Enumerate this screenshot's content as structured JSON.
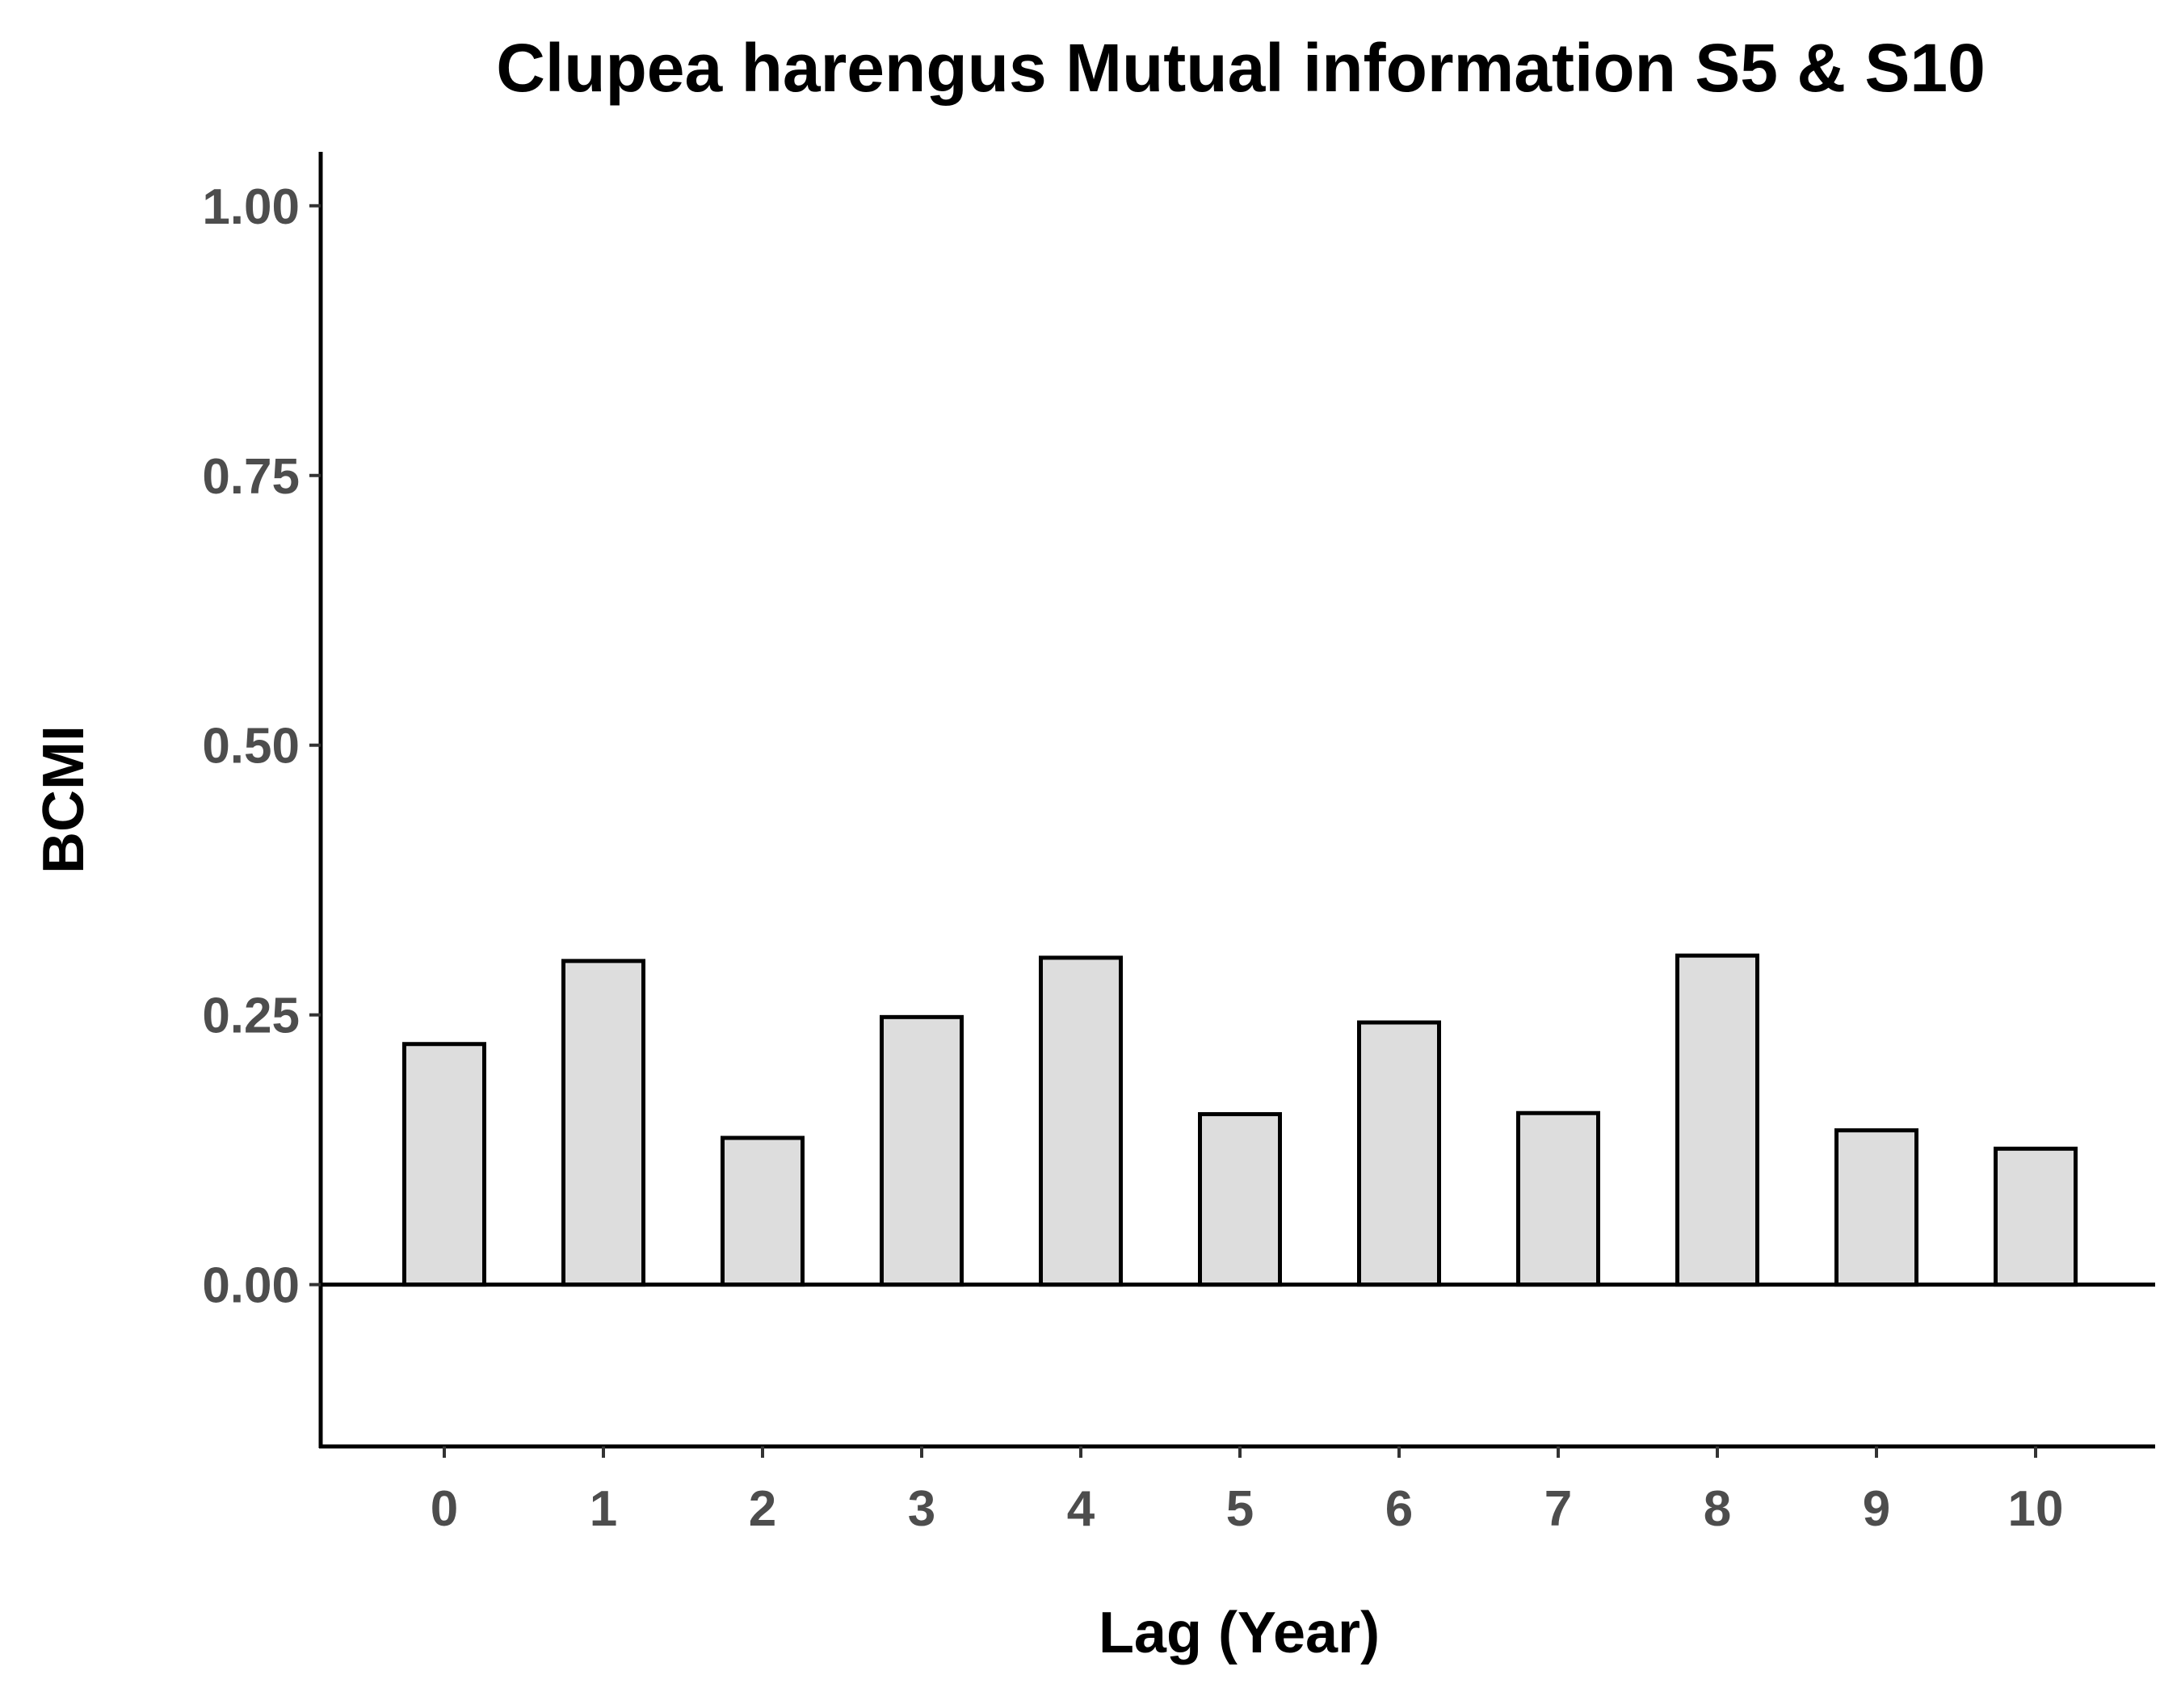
{
  "chart_data": {
    "type": "bar",
    "title": "Clupea harengus Mutual information S5 & S10",
    "xlabel": "Lag (Year)",
    "ylabel": "BCMI",
    "categories": [
      "0",
      "1",
      "2",
      "3",
      "4",
      "5",
      "6",
      "7",
      "8",
      "9",
      "10"
    ],
    "values": [
      0.223,
      0.3,
      0.136,
      0.248,
      0.303,
      0.158,
      0.243,
      0.159,
      0.305,
      0.143,
      0.126
    ],
    "ylim": [
      -0.15,
      1.05
    ],
    "yticks": [
      0.0,
      0.25,
      0.5,
      0.75,
      1.0
    ],
    "ytick_labels": [
      "0.00",
      "0.25",
      "0.50",
      "0.75",
      "1.00"
    ],
    "reference_line": 0,
    "grid": false,
    "legend": "none",
    "colors": {
      "bar_fill": "#dddddd",
      "bar_stroke": "#000000",
      "axis": "#000000",
      "tick_label": "#4d4d4d"
    }
  }
}
